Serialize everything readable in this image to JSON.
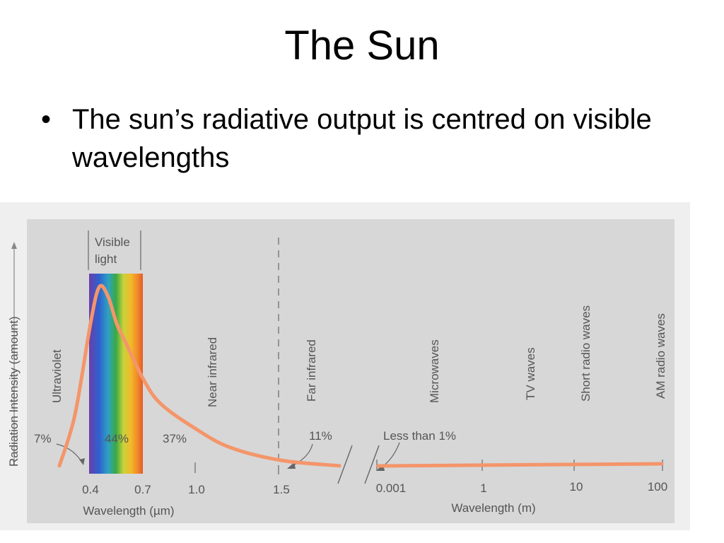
{
  "slide": {
    "title": "The Sun",
    "bullet_marker": "•",
    "bullet_text": "The sun’s radiative output is centred on visible wavelengths"
  },
  "chart_data": {
    "type": "line",
    "title": "",
    "ylabel": "Radiation Intensity (amount)",
    "xlabel_left": "Wavelength (µm)",
    "xlabel_right": "Wavelength (m)",
    "x_ticks_left": [
      "0.4",
      "0.7",
      "1.0",
      "1.5"
    ],
    "x_ticks_right": [
      "0.001",
      "1",
      "10",
      "100"
    ],
    "visible_label": [
      "Visible",
      "light"
    ],
    "bands": [
      "Ultraviolet",
      "Near infrared",
      "Far infrared",
      "Microwaves",
      "TV waves",
      "Short radio waves",
      "AM radio waves"
    ],
    "percentages": [
      {
        "label": "7%",
        "band": "Ultraviolet"
      },
      {
        "label": "44%",
        "band": "Visible light"
      },
      {
        "label": "37%",
        "band": "Near infrared"
      },
      {
        "label": "11%",
        "band": "Far infrared"
      },
      {
        "label": "Less than 1%",
        "band": "Microwaves and radio"
      }
    ],
    "curve_color": "#f4956a",
    "series": [
      {
        "x": [
          0.3,
          0.35,
          0.4,
          0.45,
          0.5,
          0.55,
          0.6,
          0.7,
          0.8,
          1.0,
          1.2,
          1.5,
          1.8
        ],
        "values": [
          0.02,
          0.3,
          0.8,
          1.0,
          0.95,
          0.8,
          0.7,
          0.5,
          0.36,
          0.22,
          0.12,
          0.05,
          0.02
        ]
      }
    ]
  }
}
